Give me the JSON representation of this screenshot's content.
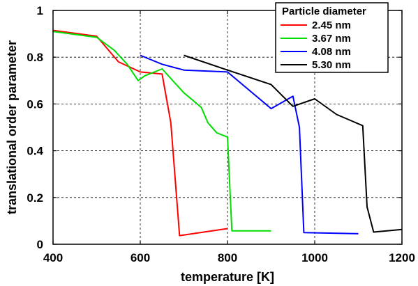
{
  "chart_data": {
    "type": "line",
    "xlabel": "temperature [K]",
    "ylabel": "translational order parameter",
    "xlim": [
      400,
      1200
    ],
    "ylim": [
      0,
      1
    ],
    "xticks": [
      400,
      600,
      800,
      1000,
      1200
    ],
    "yticks": [
      0,
      0.2,
      0.4,
      0.6,
      0.8,
      1
    ],
    "ytick_labels": [
      "0",
      "0.2",
      "0.4",
      "0.6",
      "0.8",
      "1"
    ],
    "grid": true,
    "legend_title": "Particle diameter",
    "legend_position": "top-right",
    "series": [
      {
        "name": "2.45 nm",
        "color": "#ff0000",
        "points": [
          [
            400,
            0.915
          ],
          [
            500,
            0.89
          ],
          [
            550,
            0.78
          ],
          [
            600,
            0.737
          ],
          [
            650,
            0.728
          ],
          [
            670,
            0.52
          ],
          [
            690,
            0.037
          ],
          [
            800,
            0.067
          ]
        ]
      },
      {
        "name": "3.67 nm",
        "color": "#00dd00",
        "points": [
          [
            400,
            0.91
          ],
          [
            500,
            0.885
          ],
          [
            540,
            0.83
          ],
          [
            570,
            0.77
          ],
          [
            595,
            0.7
          ],
          [
            610,
            0.72
          ],
          [
            650,
            0.75
          ],
          [
            700,
            0.648
          ],
          [
            740,
            0.585
          ],
          [
            755,
            0.52
          ],
          [
            775,
            0.477
          ],
          [
            800,
            0.458
          ],
          [
            810,
            0.057
          ],
          [
            900,
            0.057
          ]
        ]
      },
      {
        "name": "4.08 nm",
        "color": "#0000ff",
        "points": [
          [
            600,
            0.808
          ],
          [
            650,
            0.77
          ],
          [
            700,
            0.745
          ],
          [
            800,
            0.737
          ],
          [
            900,
            0.58
          ],
          [
            950,
            0.633
          ],
          [
            965,
            0.5
          ],
          [
            975,
            0.05
          ],
          [
            1100,
            0.045
          ]
        ]
      },
      {
        "name": "5.30 nm",
        "color": "#000000",
        "points": [
          [
            700,
            0.808
          ],
          [
            800,
            0.745
          ],
          [
            900,
            0.683
          ],
          [
            950,
            0.59
          ],
          [
            1000,
            0.622
          ],
          [
            1050,
            0.555
          ],
          [
            1110,
            0.507
          ],
          [
            1120,
            0.16
          ],
          [
            1135,
            0.052
          ],
          [
            1200,
            0.063
          ]
        ]
      }
    ]
  }
}
